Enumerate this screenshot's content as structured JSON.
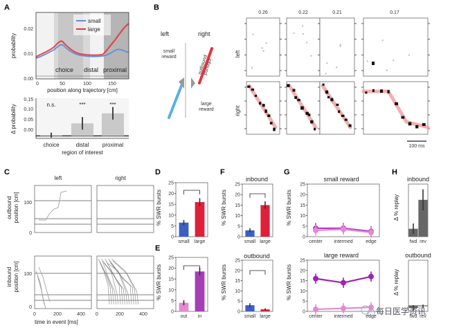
{
  "panels": {
    "A": "A",
    "B": "B",
    "C": "C",
    "D": "D",
    "E": "E",
    "F": "F",
    "G": "G",
    "H": "H"
  },
  "panelA": {
    "ylabel_top": "probability",
    "yticks_top": [
      "0.02",
      "0.01",
      "0.00"
    ],
    "xticks_top": [
      "0",
      "50",
      "100",
      "150"
    ],
    "xlabel_top": "position along trajectory [cm]",
    "legend": [
      "small",
      "large"
    ],
    "regions": [
      "choice",
      "distal",
      "proximal"
    ],
    "ylabel_bottom": "Δ probability",
    "yticks_bottom": [
      "0.15",
      "0.10",
      "0.05",
      "0.00"
    ],
    "sig": [
      "n.s.",
      "***",
      "***"
    ],
    "xlabel_bottom": "region of interest",
    "colors": {
      "small": "#5b8fe0",
      "large": "#e8323c"
    }
  },
  "chart_data": [
    {
      "type": "bar",
      "panel": "A",
      "categories": [
        "choice",
        "distal",
        "proximal"
      ],
      "values": [
        0.003,
        0.05,
        0.09
      ],
      "errors": [
        0.01,
        0.025,
        0.025
      ],
      "xlabel": "region of interest",
      "ylabel": "Δ probability",
      "ylim": [
        -0.01,
        0.15
      ]
    },
    {
      "type": "bar",
      "panel": "D",
      "categories": [
        "small",
        "large"
      ],
      "values": [
        6.5,
        16
      ],
      "errors": [
        1.2,
        1.8
      ],
      "ylabel": "% SWR bursts",
      "ylim": [
        0,
        25
      ],
      "colors": [
        "#3b5fc4",
        "#e0203a"
      ]
    },
    {
      "type": "bar",
      "panel": "E",
      "categories": [
        "out",
        "in"
      ],
      "values": [
        4,
        18.5
      ],
      "errors": [
        1.2,
        1.8
      ],
      "ylabel": "% SWR bursts",
      "ylim": [
        0,
        25
      ],
      "colors": [
        "#e58ad0",
        "#a63fb6"
      ]
    },
    {
      "type": "bar",
      "panel": "F-inbound",
      "title": "inbound",
      "categories": [
        "small",
        "large"
      ],
      "values": [
        3,
        15
      ],
      "errors": [
        1.0,
        1.8
      ],
      "ylabel": "% SWR bursts",
      "ylim": [
        0,
        25
      ],
      "colors": [
        "#3b5fc4",
        "#e0203a"
      ]
    },
    {
      "type": "bar",
      "panel": "F-outbound",
      "title": "outbound",
      "categories": [
        "small",
        "large"
      ],
      "values": [
        3,
        1
      ],
      "errors": [
        1.0,
        0.5
      ],
      "ylabel": "% SWR bursts",
      "ylim": [
        0,
        25
      ],
      "colors": [
        "#3b5fc4",
        "#e0203a"
      ]
    },
    {
      "type": "line",
      "panel": "G-small",
      "title": "small reward",
      "categories": [
        "center",
        "intermed",
        "edge"
      ],
      "series": [
        {
          "values": [
            4,
            4,
            2.5
          ],
          "color": "#b43cc8"
        },
        {
          "values": [
            3,
            3.5,
            2
          ],
          "color": "#e58ad0"
        }
      ],
      "ylabel": "% SWR bursts",
      "ylim": [
        0,
        25
      ]
    },
    {
      "type": "line",
      "panel": "G-large",
      "title": "large reward",
      "categories": [
        "center",
        "intermed",
        "edge"
      ],
      "series": [
        {
          "values": [
            16,
            14,
            17
          ],
          "color": "#a020b8"
        },
        {
          "values": [
            1,
            1.5,
            2
          ],
          "color": "#e58ad0"
        }
      ],
      "ylabel": "% SWR bursts",
      "ylim": [
        0,
        25
      ]
    },
    {
      "type": "bar",
      "panel": "H-inbound",
      "title": "inbound",
      "categories": [
        "fwd",
        "rev"
      ],
      "values": [
        1.5,
        7
      ],
      "errors": [
        1.0,
        2.0
      ],
      "ylabel": "Δ % replay",
      "ylim": [
        0,
        10
      ],
      "colors": [
        "#666",
        "#666"
      ]
    },
    {
      "type": "bar",
      "panel": "H-outbound",
      "title": "outbound",
      "categories": [
        "fwd",
        "rev"
      ],
      "values": [
        -0.4,
        -0.1
      ],
      "errors": [
        0.5,
        0.3
      ],
      "ylabel": "Δ % replay",
      "ylim": [
        -1,
        8
      ],
      "colors": [
        "#666",
        "#666"
      ]
    }
  ],
  "panelB": {
    "left": "left",
    "right": "right",
    "small_reward": "small\nreward",
    "large_reward": "large\nreward",
    "outbound": "outbound",
    "inbound": "inbound",
    "cols": [
      "0.26",
      "0.22",
      "0.21",
      "0.17"
    ],
    "rows": [
      "left",
      "right"
    ],
    "scalebar": "100 ms"
  },
  "panelC": {
    "cols": [
      "left",
      "right"
    ],
    "ylabel_top": "outbound\nposition [cm]",
    "ylabel_bottom": "inbound\nposition [cm]",
    "ytick_100": "100",
    "ytick_0": "0",
    "xticks": [
      "0",
      "200",
      "400"
    ],
    "xlabel": "time in event [ms]"
  },
  "panelD": {
    "ylabel": "% SWR bursts",
    "yticks": [
      "25",
      "20",
      "15",
      "10",
      "5",
      "0"
    ],
    "cats": [
      "small",
      "large"
    ],
    "sig": "***"
  },
  "panelE": {
    "ylabel": "% SWR bursts",
    "yticks": [
      "25",
      "20",
      "15",
      "10",
      "5",
      "0"
    ],
    "cats": [
      "out",
      "in"
    ],
    "sig": "***"
  },
  "panelF": {
    "title_top": "inbound",
    "title_bottom": "outbound",
    "ylabel": "% SWR bursts",
    "yticks": [
      "25",
      "20",
      "15",
      "10",
      "5",
      "0"
    ],
    "cats": [
      "small",
      "large"
    ],
    "sig": "***"
  },
  "panelG": {
    "title_top": "small reward",
    "title_bottom": "large reward",
    "ylabel": "% SWR bursts",
    "yticks": [
      "25",
      "20",
      "15",
      "10",
      "5",
      "0"
    ],
    "cats": [
      "center",
      "intermed",
      "edge"
    ]
  },
  "panelH": {
    "title_top": "inbound",
    "title_bottom": "outbound",
    "ylabel": "Δ % replay",
    "cats": [
      "fwd",
      "rev"
    ]
  },
  "watermark": "每日医学资讯"
}
